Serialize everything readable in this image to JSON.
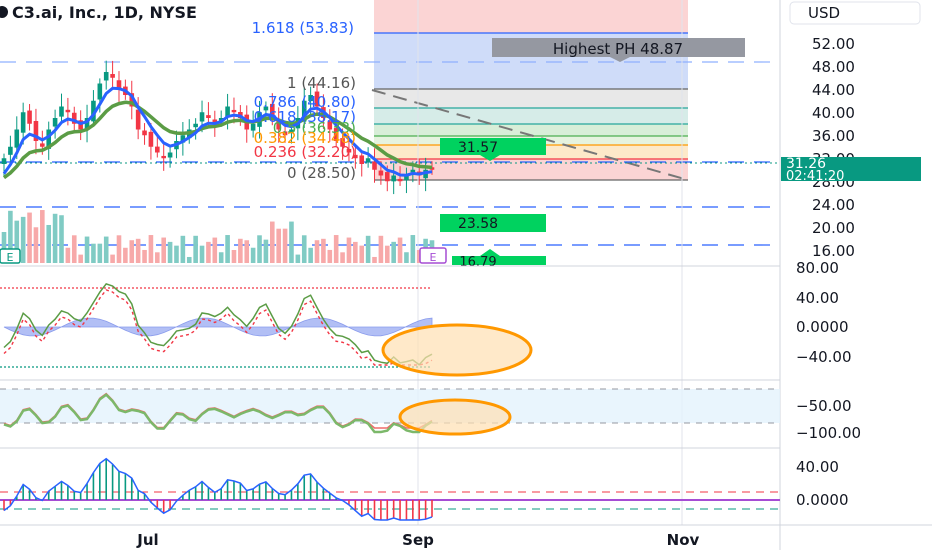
{
  "header": {
    "title": "C3.ai, Inc., 1D, NYSE",
    "currency": "USD"
  },
  "fib_labels": [
    {
      "text": "1.618 (53.83)",
      "color": "#2962ff"
    },
    {
      "text": "1 (44.16)",
      "color": "#555555"
    },
    {
      "text": "0.786 (40.80)",
      "color": "#2962ff"
    },
    {
      "text": "0.618 (38.17)",
      "color": "#2962ff"
    },
    {
      "text": "0.5 (36.33)",
      "color": "#4caf50"
    },
    {
      "text": "0.382 (34.48)",
      "color": "#ff9800"
    },
    {
      "text": "0.236 (32.20)",
      "color": "#f23645"
    },
    {
      "text": "0 (28.50)",
      "color": "#555555"
    }
  ],
  "annotations": {
    "highest": "Highest PH 48.87",
    "tag_upper": "31.57",
    "tag_mid": "23.58",
    "tag_low": "16.79",
    "earnings": "E"
  },
  "price_badge": {
    "value": "31.26",
    "countdown": "02:41:20",
    "color": "#089981"
  },
  "price_axis": [
    "52.00",
    "48.00",
    "44.00",
    "40.00",
    "36.00",
    "32.00",
    "28.00",
    "24.00",
    "20.00",
    "16.00"
  ],
  "osc1_axis": [
    "80.00",
    "40.00",
    "0.0000",
    "−40.00"
  ],
  "osc2_axis": [
    "−50.00",
    "−100.00"
  ],
  "osc3_axis": [
    "40.00",
    "0.0000"
  ],
  "time_axis": [
    "Jul",
    "Sep",
    "Nov"
  ],
  "colors": {
    "up": "#089981",
    "down": "#f23645",
    "ema_fast": "#2962ff",
    "ema_slow": "#5b9c45",
    "highlight": "#ff9800"
  },
  "chart_data": {
    "type": "line",
    "title": "C3.ai, Inc., 1D, NYSE",
    "x_ticks": [
      "Jul",
      "Sep",
      "Nov"
    ],
    "ylim": [
      14,
      56
    ],
    "last_price": 31.26,
    "fib_levels": [
      53.83,
      44.16,
      40.8,
      38.17,
      36.33,
      34.48,
      32.2,
      28.5
    ],
    "close": [
      33,
      35,
      38,
      41,
      39,
      36,
      35,
      38,
      40,
      42,
      41,
      39,
      38,
      40,
      43,
      46,
      48,
      47,
      45,
      44,
      42,
      38,
      37,
      35,
      34,
      33,
      34,
      36,
      37,
      38,
      39,
      41,
      40,
      39,
      40,
      42,
      41,
      40,
      38,
      39,
      41,
      42,
      40,
      38,
      37,
      38,
      40,
      43,
      44,
      42,
      40,
      38,
      36,
      35,
      34,
      33,
      32,
      33,
      31,
      30,
      29,
      30,
      29,
      30,
      31,
      30,
      31,
      31
    ]
  }
}
